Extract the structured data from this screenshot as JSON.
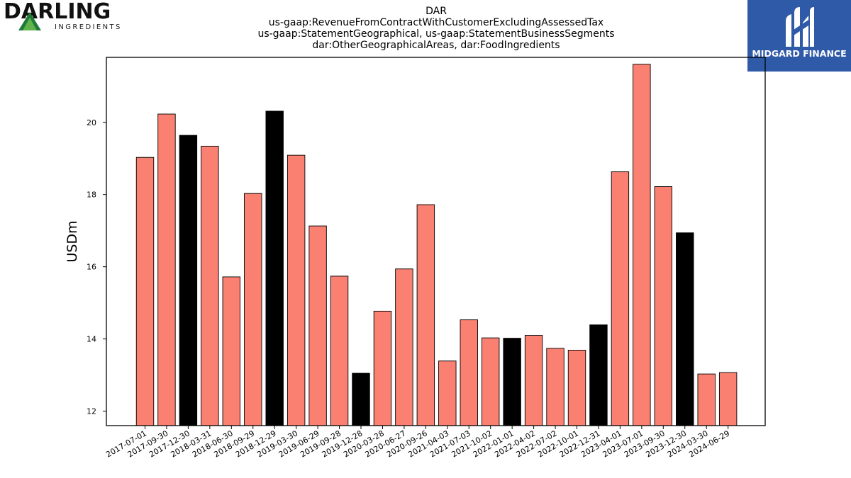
{
  "brand": {
    "left_word": "DARLING",
    "left_sub": "INGREDIENTS",
    "right_word": "MIDGARD FINANCE"
  },
  "icons": {
    "left_logo": "darling-triangle-icon",
    "right_logo": "midgard-m-icon"
  },
  "colors": {
    "bar_default": "#fa8072",
    "bar_highlight": "#000000",
    "brand_right_bg": "#2f5aa8"
  },
  "chart_data": {
    "type": "bar",
    "title": [
      "DAR",
      "us-gaap:RevenueFromContractWithCustomerExcludingAssessedTax",
      "us-gaap:StatementGeographical, us-gaap:StatementBusinessSegments",
      "dar:OtherGeographicalAreas, dar:FoodIngredients"
    ],
    "ylabel": "USDm",
    "xlabel": "",
    "ylim": [
      11.6,
      21.8
    ],
    "yticks": [
      12,
      14,
      16,
      18,
      20
    ],
    "grid": false,
    "categories": [
      "2017-07-01",
      "2017-09-30",
      "2017-12-30",
      "2018-03-31",
      "2018-06-30",
      "2018-09-29",
      "2018-12-29",
      "2019-03-30",
      "2019-06-29",
      "2019-09-28",
      "2019-12-28",
      "2020-03-28",
      "2020-06-27",
      "2020-09-26",
      "2021-04-03",
      "2021-07-03",
      "2021-10-02",
      "2022-01-01",
      "2022-04-02",
      "2022-07-02",
      "2022-10-01",
      "2022-12-31",
      "2023-04-01",
      "2023-07-01",
      "2023-09-30",
      "2023-12-30",
      "2024-03-30",
      "2024-06-29"
    ],
    "values": [
      19.03,
      20.23,
      19.64,
      19.34,
      15.72,
      18.03,
      20.31,
      19.09,
      17.13,
      15.74,
      13.05,
      14.77,
      15.94,
      17.72,
      13.39,
      14.53,
      14.03,
      14.02,
      14.1,
      13.74,
      13.69,
      14.39,
      18.63,
      21.61,
      18.22,
      16.94,
      13.03,
      13.07
    ],
    "highlight": [
      false,
      false,
      true,
      false,
      false,
      false,
      true,
      false,
      false,
      false,
      true,
      false,
      false,
      false,
      false,
      false,
      false,
      true,
      false,
      false,
      false,
      true,
      false,
      false,
      false,
      true,
      false,
      false
    ]
  }
}
